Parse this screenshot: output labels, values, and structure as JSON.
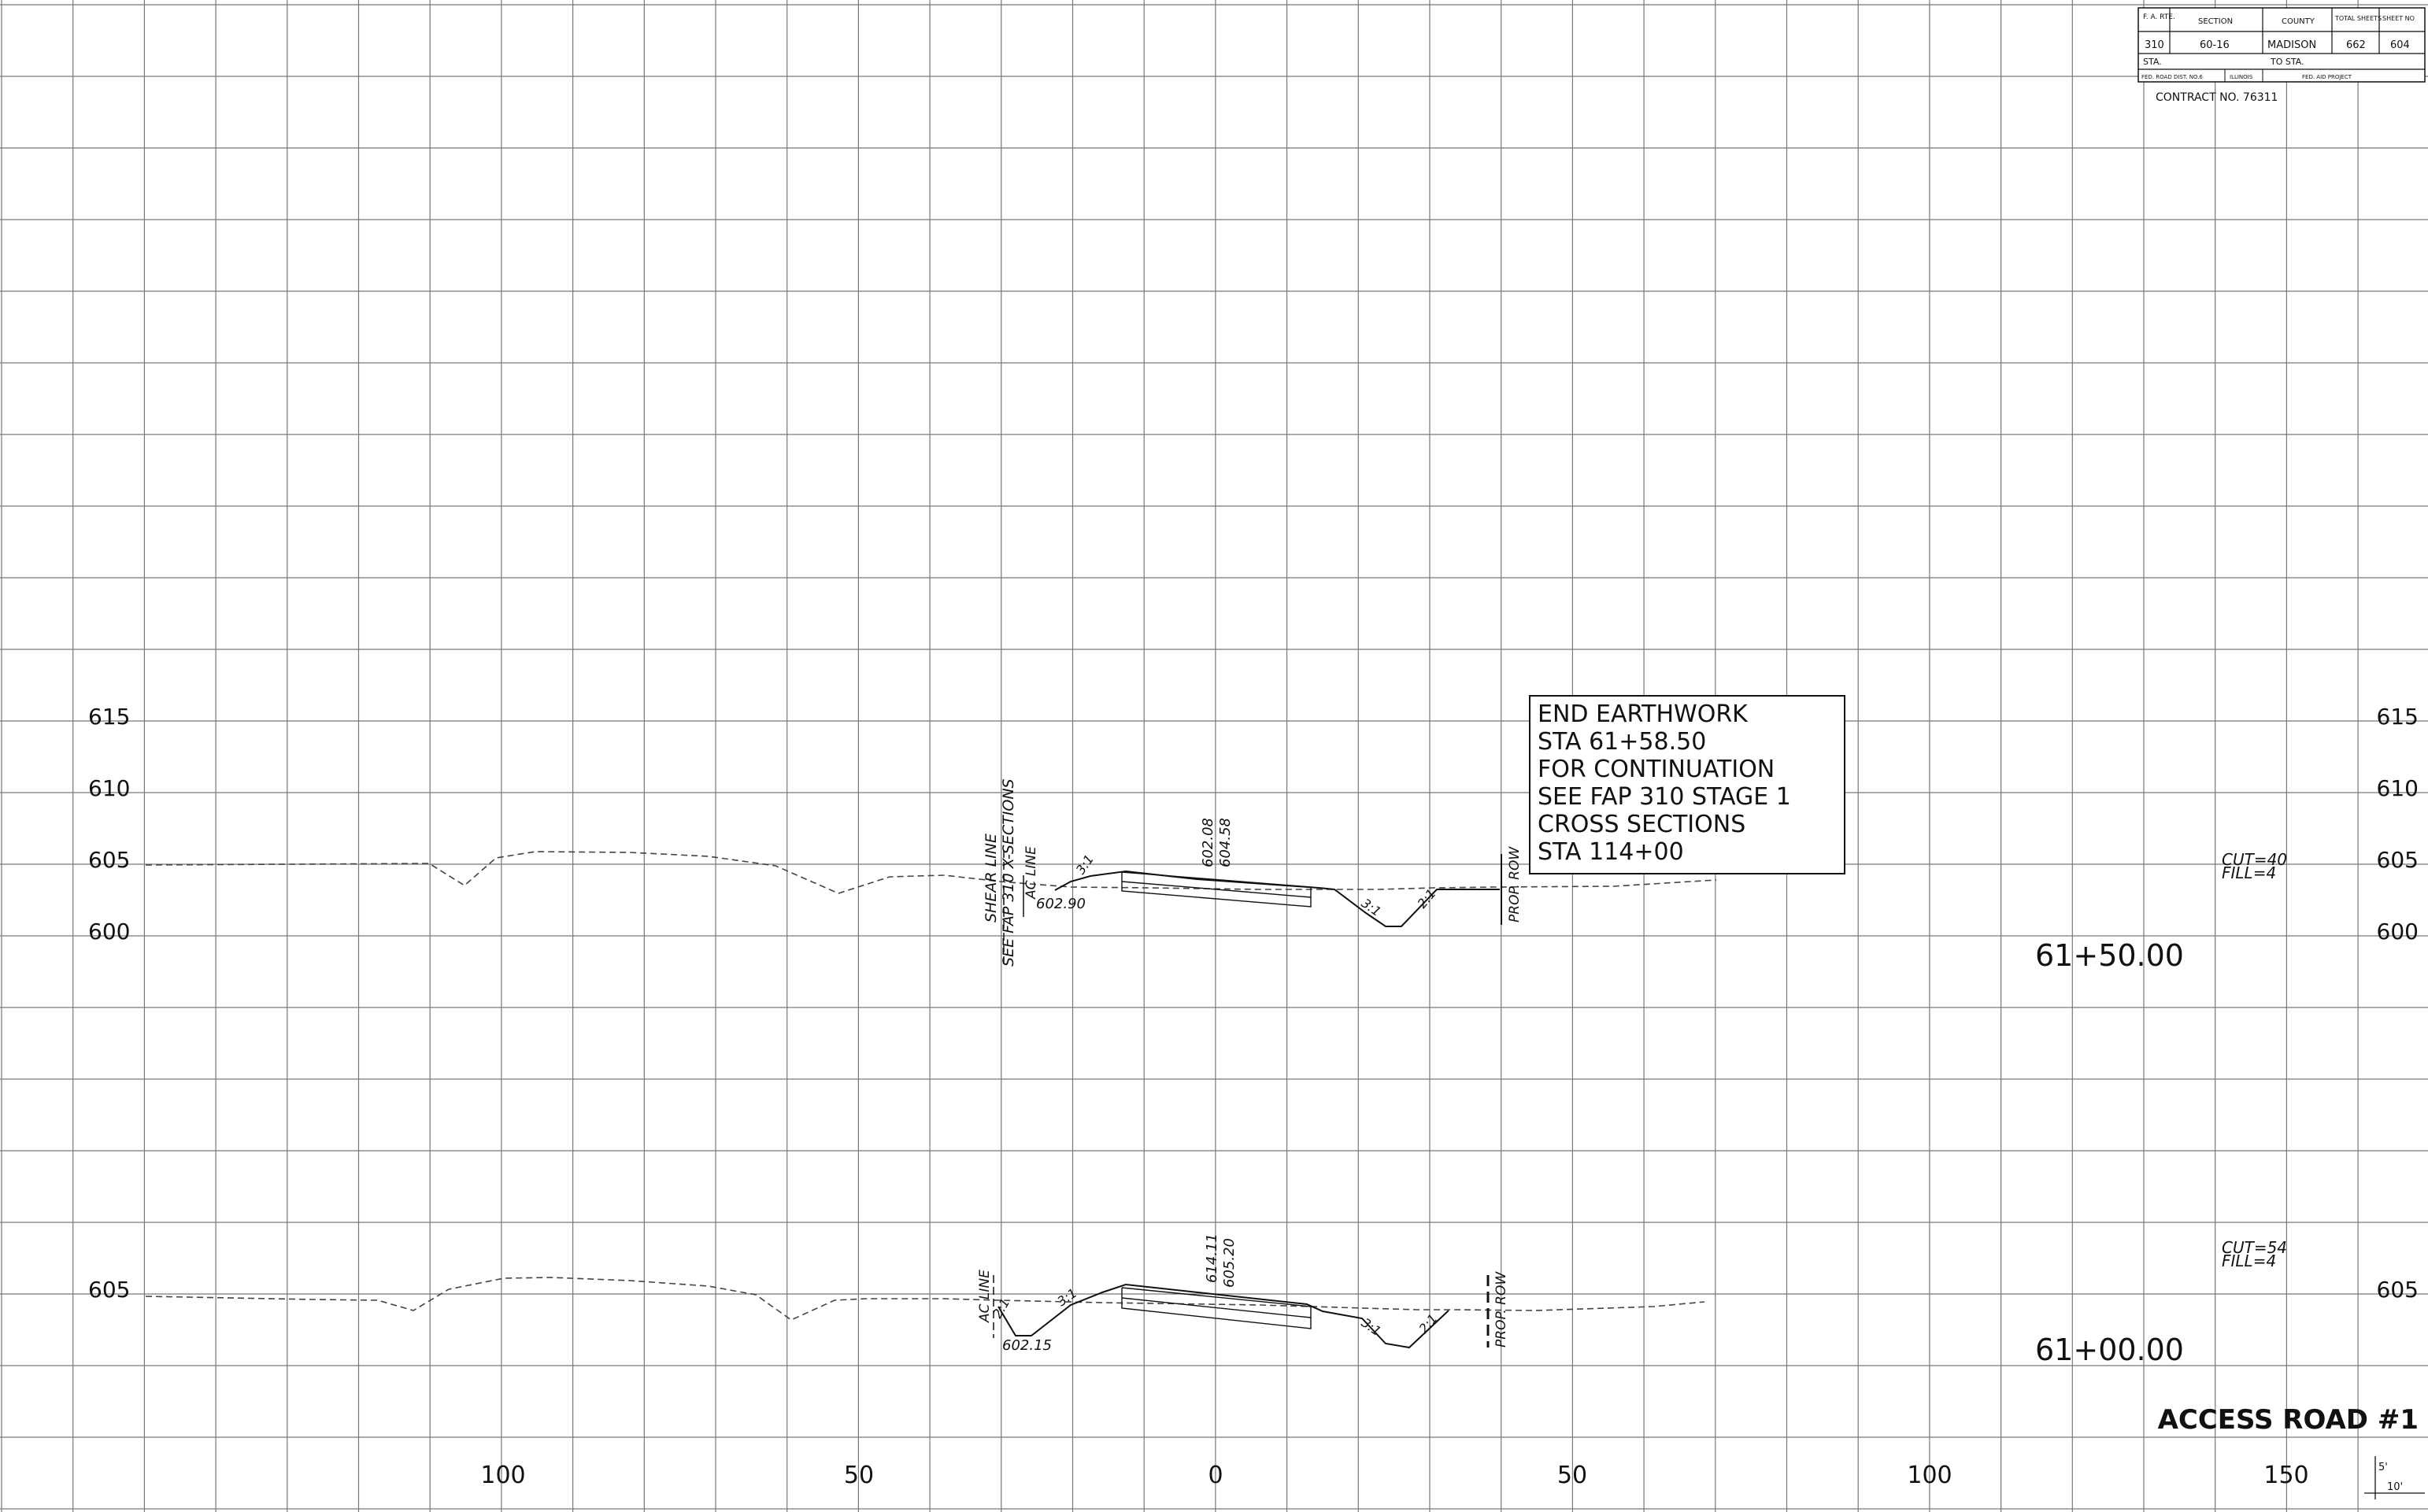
{
  "title_block": {
    "headers": {
      "fa_rte": "F. A. RTE.",
      "section": "SECTION",
      "county": "COUNTY",
      "total_sheets": "TOTAL SHEETS",
      "sheet_no": "SHEET NO"
    },
    "values": {
      "fa_rte": "310",
      "section": "60-16",
      "county": "MADISON",
      "total_sheets": "662",
      "sheet_no": "604"
    },
    "sta_label": "STA.",
    "to_sta_label": "TO STA.",
    "fed_road_dist": "FED. ROAD DIST. NO.6",
    "state": "ILLINOIS",
    "fed_aid_project": "FED. AID PROJECT",
    "contract": "CONTRACT NO. 76311"
  },
  "elevation_labels": {
    "upper": [
      "615",
      "610",
      "605",
      "600"
    ],
    "lower": [
      "605"
    ]
  },
  "offset_labels": [
    "100",
    "50",
    "0",
    "50",
    "100",
    "150"
  ],
  "note_box": {
    "lines": [
      "END EARTHWORK",
      "STA 61+58.50",
      "FOR CONTINUATION",
      "SEE FAP 310 STAGE 1",
      "CROSS SECTIONS",
      "STA 114+00"
    ]
  },
  "sections": [
    {
      "station": "61+50.00",
      "cut": "CUT=40",
      "fill": "FILL=4",
      "left_labels": [
        "SHEAR LINE",
        "SEE FAP 310 X-SECTIONS"
      ],
      "ac_line": "AC LINE",
      "left_elev": "602.90",
      "top_elevs": [
        "602.08",
        "604.58"
      ],
      "slopes": [
        "3:1",
        "3:1",
        "2:1"
      ],
      "row": "PROP. ROW"
    },
    {
      "station": "61+00.00",
      "cut": "CUT=54",
      "fill": "FILL=4",
      "ac_line": "AC LINE",
      "left_elev": "602.15",
      "top_elevs": [
        "614.11",
        "605.20"
      ],
      "slopes": [
        "2:1",
        "3:1",
        "3:1",
        "2:1"
      ],
      "row": "PROP. ROW"
    }
  ],
  "footer": {
    "title": "ACCESS ROAD #1",
    "scale_vertical": "5'",
    "scale_horizontal": "10'"
  }
}
